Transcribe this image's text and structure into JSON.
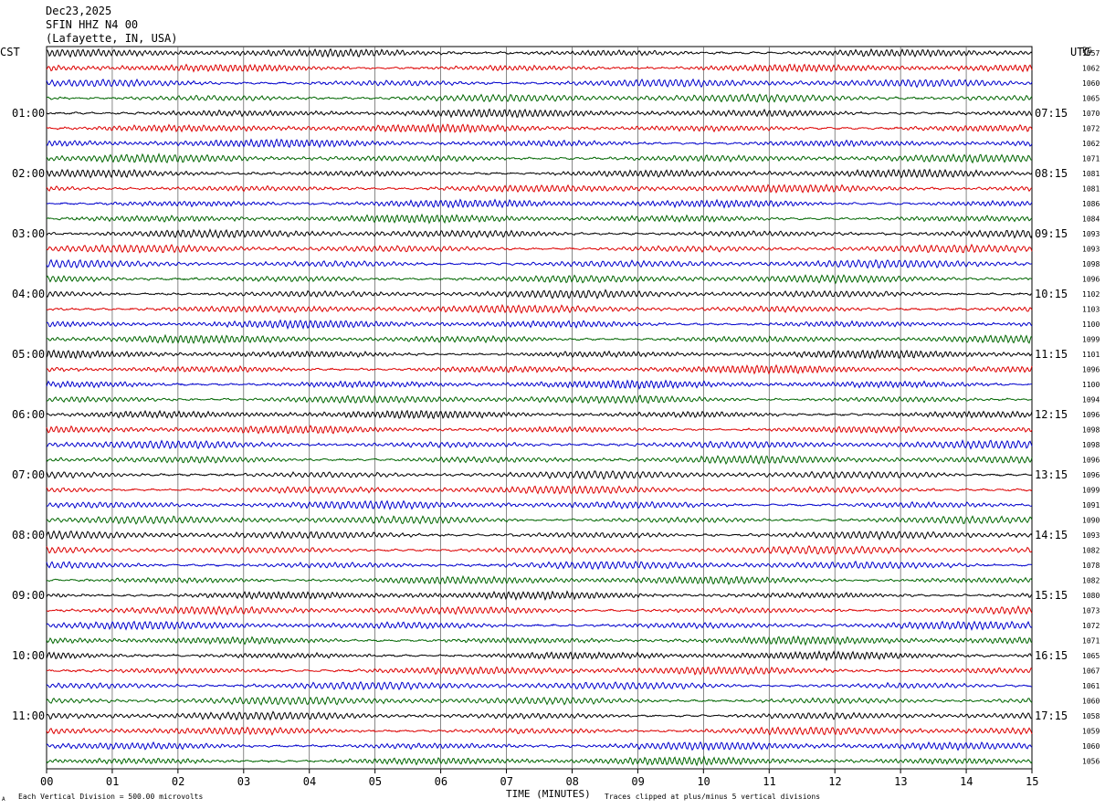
{
  "header": {
    "date": "Dec23,2025",
    "station": "SFIN HHZ N4 00",
    "location": "(Lafayette, IN, USA)"
  },
  "left_tz": "CST",
  "right_tz": "UTC",
  "pg_label": "PG",
  "footer": {
    "left_mark": "A",
    "division_note": "Each Vertical Division =  500.00 microvolts",
    "xlabel": "TIME (MINUTES)",
    "clip_note": "Traces clipped at plus/minus 5 vertical divisions"
  },
  "chart_data": {
    "type": "line",
    "subtype": "helicorder",
    "x_range": [
      0,
      15
    ],
    "x_ticks": [
      "00",
      "01",
      "02",
      "03",
      "04",
      "05",
      "06",
      "07",
      "08",
      "09",
      "10",
      "11",
      "12",
      "13",
      "14",
      "15"
    ],
    "xlabel": "TIME (MINUTES)",
    "trace_colors": [
      "#000000",
      "#dd0000",
      "#0000cc",
      "#006600"
    ],
    "left_hour_labels": [
      {
        "row": 4,
        "text": "01:00"
      },
      {
        "row": 8,
        "text": "02:00"
      },
      {
        "row": 12,
        "text": "03:00"
      },
      {
        "row": 16,
        "text": "04:00"
      },
      {
        "row": 20,
        "text": "05:00"
      },
      {
        "row": 24,
        "text": "06:00"
      },
      {
        "row": 28,
        "text": "07:00"
      },
      {
        "row": 32,
        "text": "08:00"
      },
      {
        "row": 36,
        "text": "09:00"
      },
      {
        "row": 40,
        "text": "10:00"
      },
      {
        "row": 44,
        "text": "11:00"
      }
    ],
    "right_hour_labels": [
      {
        "row": 4,
        "text": "07:15"
      },
      {
        "row": 8,
        "text": "08:15"
      },
      {
        "row": 12,
        "text": "09:15"
      },
      {
        "row": 16,
        "text": "10:15"
      },
      {
        "row": 20,
        "text": "11:15"
      },
      {
        "row": 24,
        "text": "12:15"
      },
      {
        "row": 28,
        "text": "13:15"
      },
      {
        "row": 32,
        "text": "14:15"
      },
      {
        "row": 36,
        "text": "15:15"
      },
      {
        "row": 40,
        "text": "16:15"
      },
      {
        "row": 44,
        "text": "17:15"
      }
    ],
    "row_values": [
      "1057",
      "1062",
      "1060",
      "1065",
      "1070",
      "1072",
      "1062",
      "1071",
      "1081",
      "1081",
      "1086",
      "1084",
      "1093",
      "1093",
      "1098",
      "1096",
      "1102",
      "1103",
      "1100",
      "1099",
      "1101",
      "1096",
      "1100",
      "1094",
      "1096",
      "1098",
      "1098",
      "1096",
      "1096",
      "1099",
      "1091",
      "1090",
      "1093",
      "1082",
      "1078",
      "1082",
      "1080",
      "1073",
      "1072",
      "1071",
      "1065",
      "1067",
      "1061",
      "1060",
      "1058",
      "1059",
      "1060",
      "1056"
    ],
    "trace_count": 48
  }
}
